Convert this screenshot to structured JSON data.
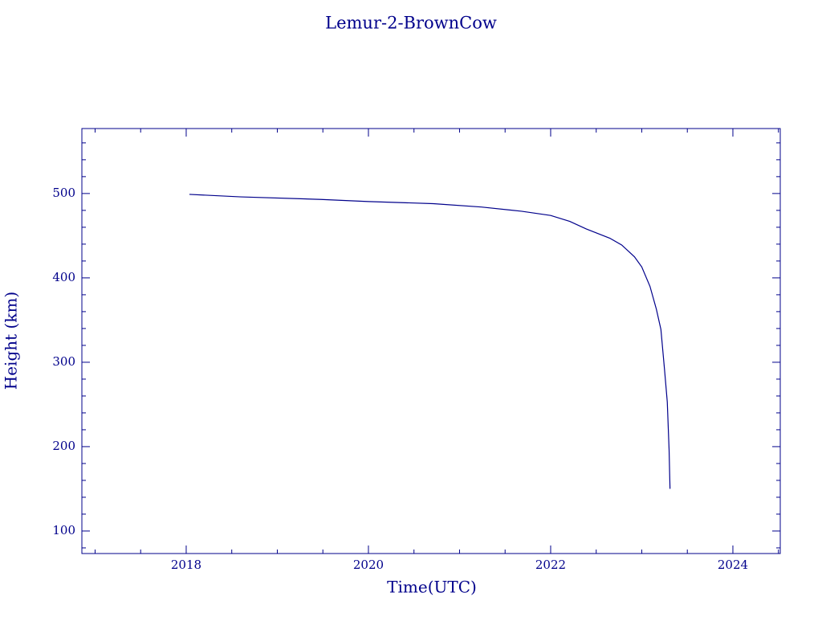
{
  "chart_data": {
    "type": "line",
    "title": "Lemur-2-BrownCow",
    "x_label": "Time(UTC)",
    "y_label": "Height (km)",
    "series": [
      {
        "color": "#00008b",
        "x": [
          2018.035,
          2018.6,
          2019.48,
          2020.0,
          2020.71,
          2021.24,
          2021.68,
          2022.0,
          2022.21,
          2022.39,
          2022.65,
          2022.78,
          2022.92,
          2023.0,
          2023.09,
          2023.16,
          2023.21,
          2023.25,
          2023.28,
          2023.3,
          2023.31
        ],
        "values": [
          499,
          496,
          493,
          490.5,
          488,
          484,
          479,
          474,
          467,
          458,
          447,
          439,
          425,
          413,
          390,
          363,
          339,
          291,
          253,
          196,
          150
        ]
      }
    ],
    "xlim": [
      2016.855,
      2024.52
    ],
    "xticks": [
      2018,
      2020,
      2022,
      2024
    ],
    "xticks_minor": [
      2017,
      2017.5,
      2018.5,
      2019,
      2019.5,
      2020.5,
      2021,
      2021.5,
      2022.5,
      2023,
      2023.5,
      2024.5
    ],
    "ylim": [
      73.3,
      577
    ],
    "yticks": [
      100,
      200,
      300,
      400,
      500
    ],
    "yticks_minor": [
      80,
      120,
      140,
      160,
      180,
      220,
      240,
      260,
      280,
      320,
      340,
      360,
      380,
      420,
      440,
      460,
      480,
      520,
      540,
      560
    ],
    "grid": false
  }
}
